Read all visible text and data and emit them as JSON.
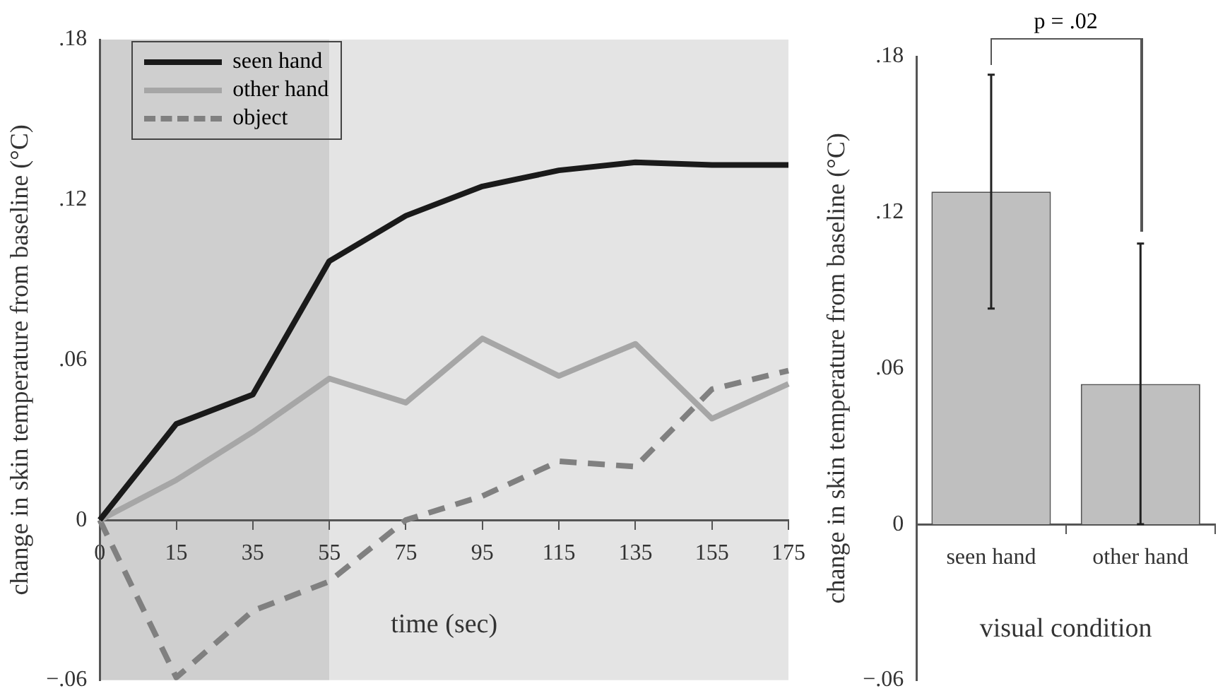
{
  "chart_data": [
    {
      "type": "line",
      "categories": [
        "0",
        "15",
        "35",
        "55",
        "75",
        "95",
        "115",
        "135",
        "155",
        "175"
      ],
      "series": [
        {
          "name": "seen hand",
          "color": "#1a1a1a",
          "values": [
            0,
            0.036,
            0.047,
            0.097,
            0.114,
            0.125,
            0.131,
            0.134,
            0.133,
            0.133
          ]
        },
        {
          "name": "other hand",
          "color": "#a6a6a6",
          "values": [
            0,
            0.015,
            0.033,
            0.053,
            0.044,
            0.068,
            0.054,
            0.066,
            0.038,
            0.051
          ]
        },
        {
          "name": "object",
          "color": "#808080",
          "line_style": "dashed",
          "values": [
            0,
            -0.059,
            -0.034,
            -0.023,
            0,
            0.009,
            0.022,
            0.02,
            0.049,
            0.056
          ]
        }
      ],
      "xlabel": "time (sec)",
      "ylabel": "change in skin temperature from baseline (°C)",
      "ylim": [
        -0.06,
        0.18
      ],
      "yticks": [
        {
          "value": -0.06,
          "label": "−.06"
        },
        {
          "value": 0,
          "label": "0"
        },
        {
          "value": 0.06,
          "label": ".06"
        },
        {
          "value": 0.12,
          "label": ".12"
        },
        {
          "value": 0.18,
          "label": ".18"
        }
      ],
      "bands": [
        {
          "axis": "x",
          "from": "0",
          "to": "55",
          "color": "#cfcfcf"
        },
        {
          "axis": "x",
          "from": "55",
          "to": "175",
          "color": "#e4e4e4"
        }
      ],
      "marker": "none",
      "legend": "top left"
    },
    {
      "type": "bar",
      "categories": [
        "seen hand",
        "other hand"
      ],
      "values": [
        0.128,
        0.054
      ],
      "errors": [
        0.045,
        0.054
      ],
      "colors": [
        "#bfbfbf",
        "#bfbfbf"
      ],
      "xlabel": "visual condition",
      "ylabel": "change in skin temperature from baseline (°C)",
      "ylim": [
        -0.06,
        0.18
      ],
      "yticks": [
        {
          "value": -0.06,
          "label": "−.06"
        },
        {
          "value": 0,
          "label": "0"
        },
        {
          "value": 0.06,
          "label": ".06"
        },
        {
          "value": 0.12,
          "label": ".12"
        },
        {
          "value": 0.18,
          "label": ".18"
        }
      ],
      "annotations": [
        "p = .02"
      ]
    }
  ]
}
